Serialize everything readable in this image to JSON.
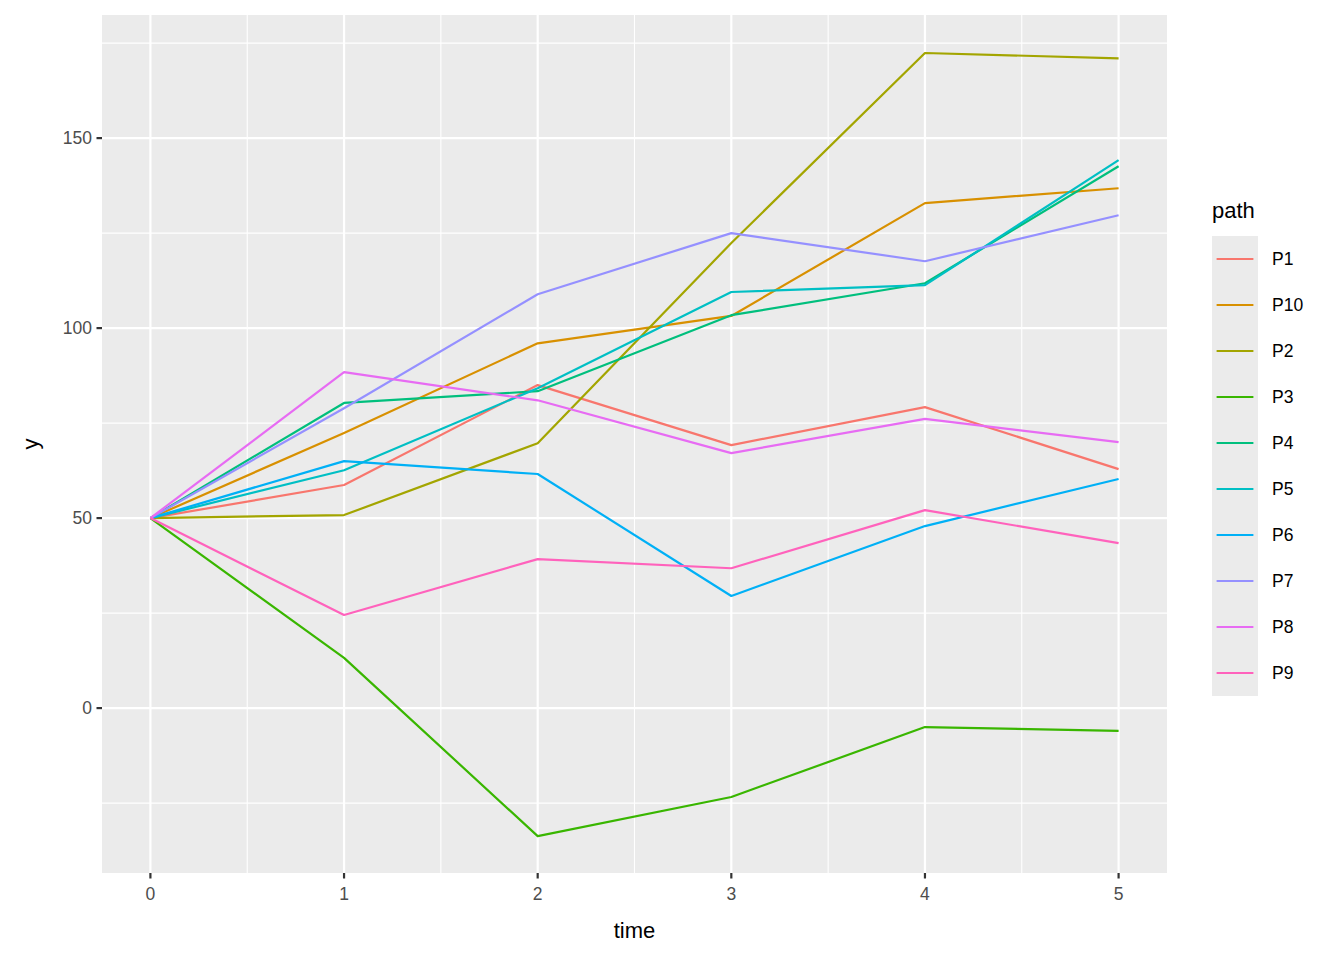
{
  "chart_data": {
    "type": "line",
    "x_label": "time",
    "y_label": "y",
    "legend_title": "path",
    "x": [
      0,
      1,
      2,
      3,
      4,
      5
    ],
    "series": [
      {
        "name": "P1",
        "color": "#F8766D",
        "values": [
          50,
          58.7,
          85.0,
          69.2,
          79.2,
          62.9
        ]
      },
      {
        "name": "P10",
        "color": "#D89000",
        "values": [
          50,
          72.4,
          96.0,
          103.2,
          132.9,
          136.8
        ]
      },
      {
        "name": "P2",
        "color": "#A3A500",
        "values": [
          50,
          50.8,
          69.7,
          122.4,
          172.4,
          171.0
        ]
      },
      {
        "name": "P3",
        "color": "#39B600",
        "values": [
          50,
          13.2,
          -33.7,
          -23.4,
          -5.0,
          -6.0
        ]
      },
      {
        "name": "P4",
        "color": "#00BF7D",
        "values": [
          50,
          80.3,
          83.4,
          103.4,
          111.8,
          142.6
        ]
      },
      {
        "name": "P5",
        "color": "#00BFC4",
        "values": [
          50,
          62.6,
          84.2,
          109.5,
          111.3,
          144.2
        ]
      },
      {
        "name": "P6",
        "color": "#00B0F6",
        "values": [
          50,
          65.0,
          61.6,
          29.5,
          47.9,
          60.3
        ]
      },
      {
        "name": "P7",
        "color": "#9590FF",
        "values": [
          50,
          78.9,
          108.9,
          125.0,
          117.6,
          129.7
        ]
      },
      {
        "name": "P8",
        "color": "#E76BF3",
        "values": [
          50,
          88.4,
          81.0,
          67.1,
          76.1,
          70.0
        ]
      },
      {
        "name": "P9",
        "color": "#FF62BC",
        "values": [
          50,
          24.5,
          39.2,
          36.8,
          52.1,
          43.4
        ]
      }
    ],
    "xlim": [
      -0.25,
      5.25
    ],
    "ylim": [
      -43.4,
      182.4
    ],
    "xticks": [
      0,
      1,
      2,
      3,
      4,
      5
    ],
    "yticks": [
      0,
      50,
      100,
      150
    ],
    "grid": true,
    "legend": "right"
  }
}
